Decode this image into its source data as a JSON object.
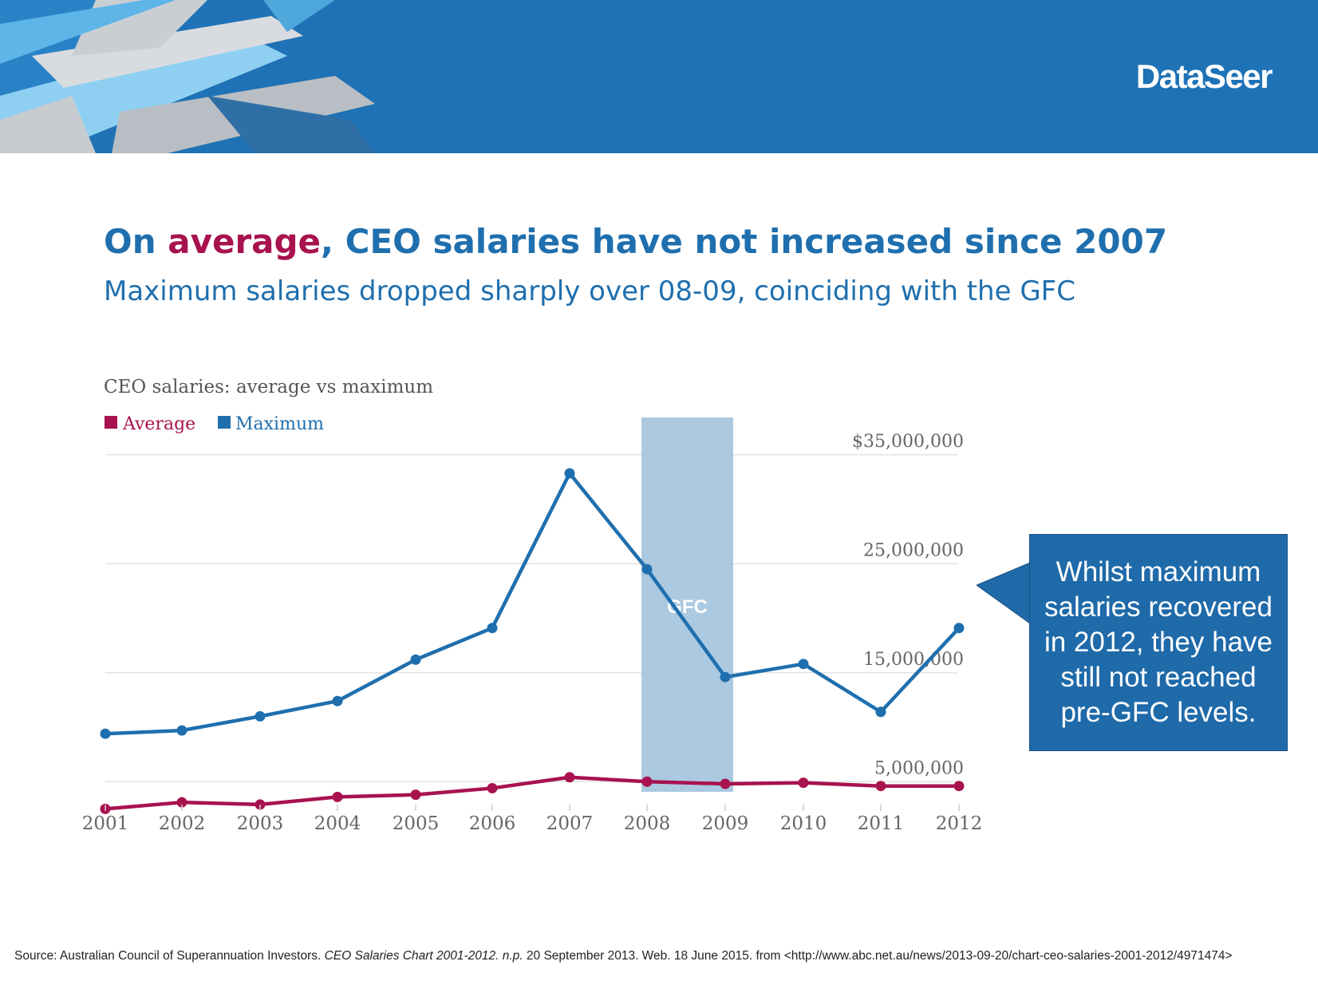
{
  "brand": {
    "logo_text": "DataSeer"
  },
  "header": {
    "title_prefix": "On ",
    "title_highlight": "average",
    "title_suffix": ", CEO salaries have not increased since 2007",
    "subtitle": "Maximum salaries dropped sharply over 08-09, coinciding with the GFC"
  },
  "callout": {
    "text": "Whilst maximum salaries recovered in 2012, they have still not reached pre-GFC levels."
  },
  "source": {
    "prefix": "Source: Australian Council of Superannuation Investors. ",
    "title": "CEO Salaries Chart 2001-2012.",
    "np": "n.p.",
    "suffix": " 20 September 2013. Web. 18 June 2015. from <http://www.abc.net.au/news/2013-09-20/chart-ceo-salaries-2001-2012/4971474>"
  },
  "colors": {
    "banner": "#1f72b5",
    "maximum": "#1f6fae",
    "average": "#a8124f",
    "gfc_band": "#a7c6df"
  },
  "chart_data": {
    "type": "line",
    "title": "CEO salaries: average vs maximum",
    "x": [
      "2001",
      "2002",
      "2003",
      "2004",
      "2005",
      "2006",
      "2007",
      "2008",
      "2009",
      "2010",
      "2011",
      "2012"
    ],
    "series": [
      {
        "name": "Average",
        "color": "#a8124f",
        "values": [
          2500000,
          3100000,
          2900000,
          3600000,
          3800000,
          4400000,
          5400000,
          5000000,
          4800000,
          4900000,
          4600000,
          4600000
        ]
      },
      {
        "name": "Maximum",
        "color": "#1f6fae",
        "values": [
          9400000,
          9700000,
          11000000,
          12400000,
          16200000,
          19100000,
          33300000,
          24500000,
          14600000,
          15800000,
          11400000,
          19100000
        ]
      }
    ],
    "ylim": [
      0,
      35000000
    ],
    "ytick_values": [
      35000000,
      25000000,
      15000000,
      5000000
    ],
    "ytick_labels": [
      "$35,000,000",
      "25,000,000",
      "15,000,000",
      "5,000,000"
    ],
    "legend": [
      "Average",
      "Maximum"
    ],
    "legend_position": "top-left",
    "grid": true,
    "annotation": {
      "label": "GFC",
      "x_start": "2008",
      "x_end": "2009"
    }
  }
}
